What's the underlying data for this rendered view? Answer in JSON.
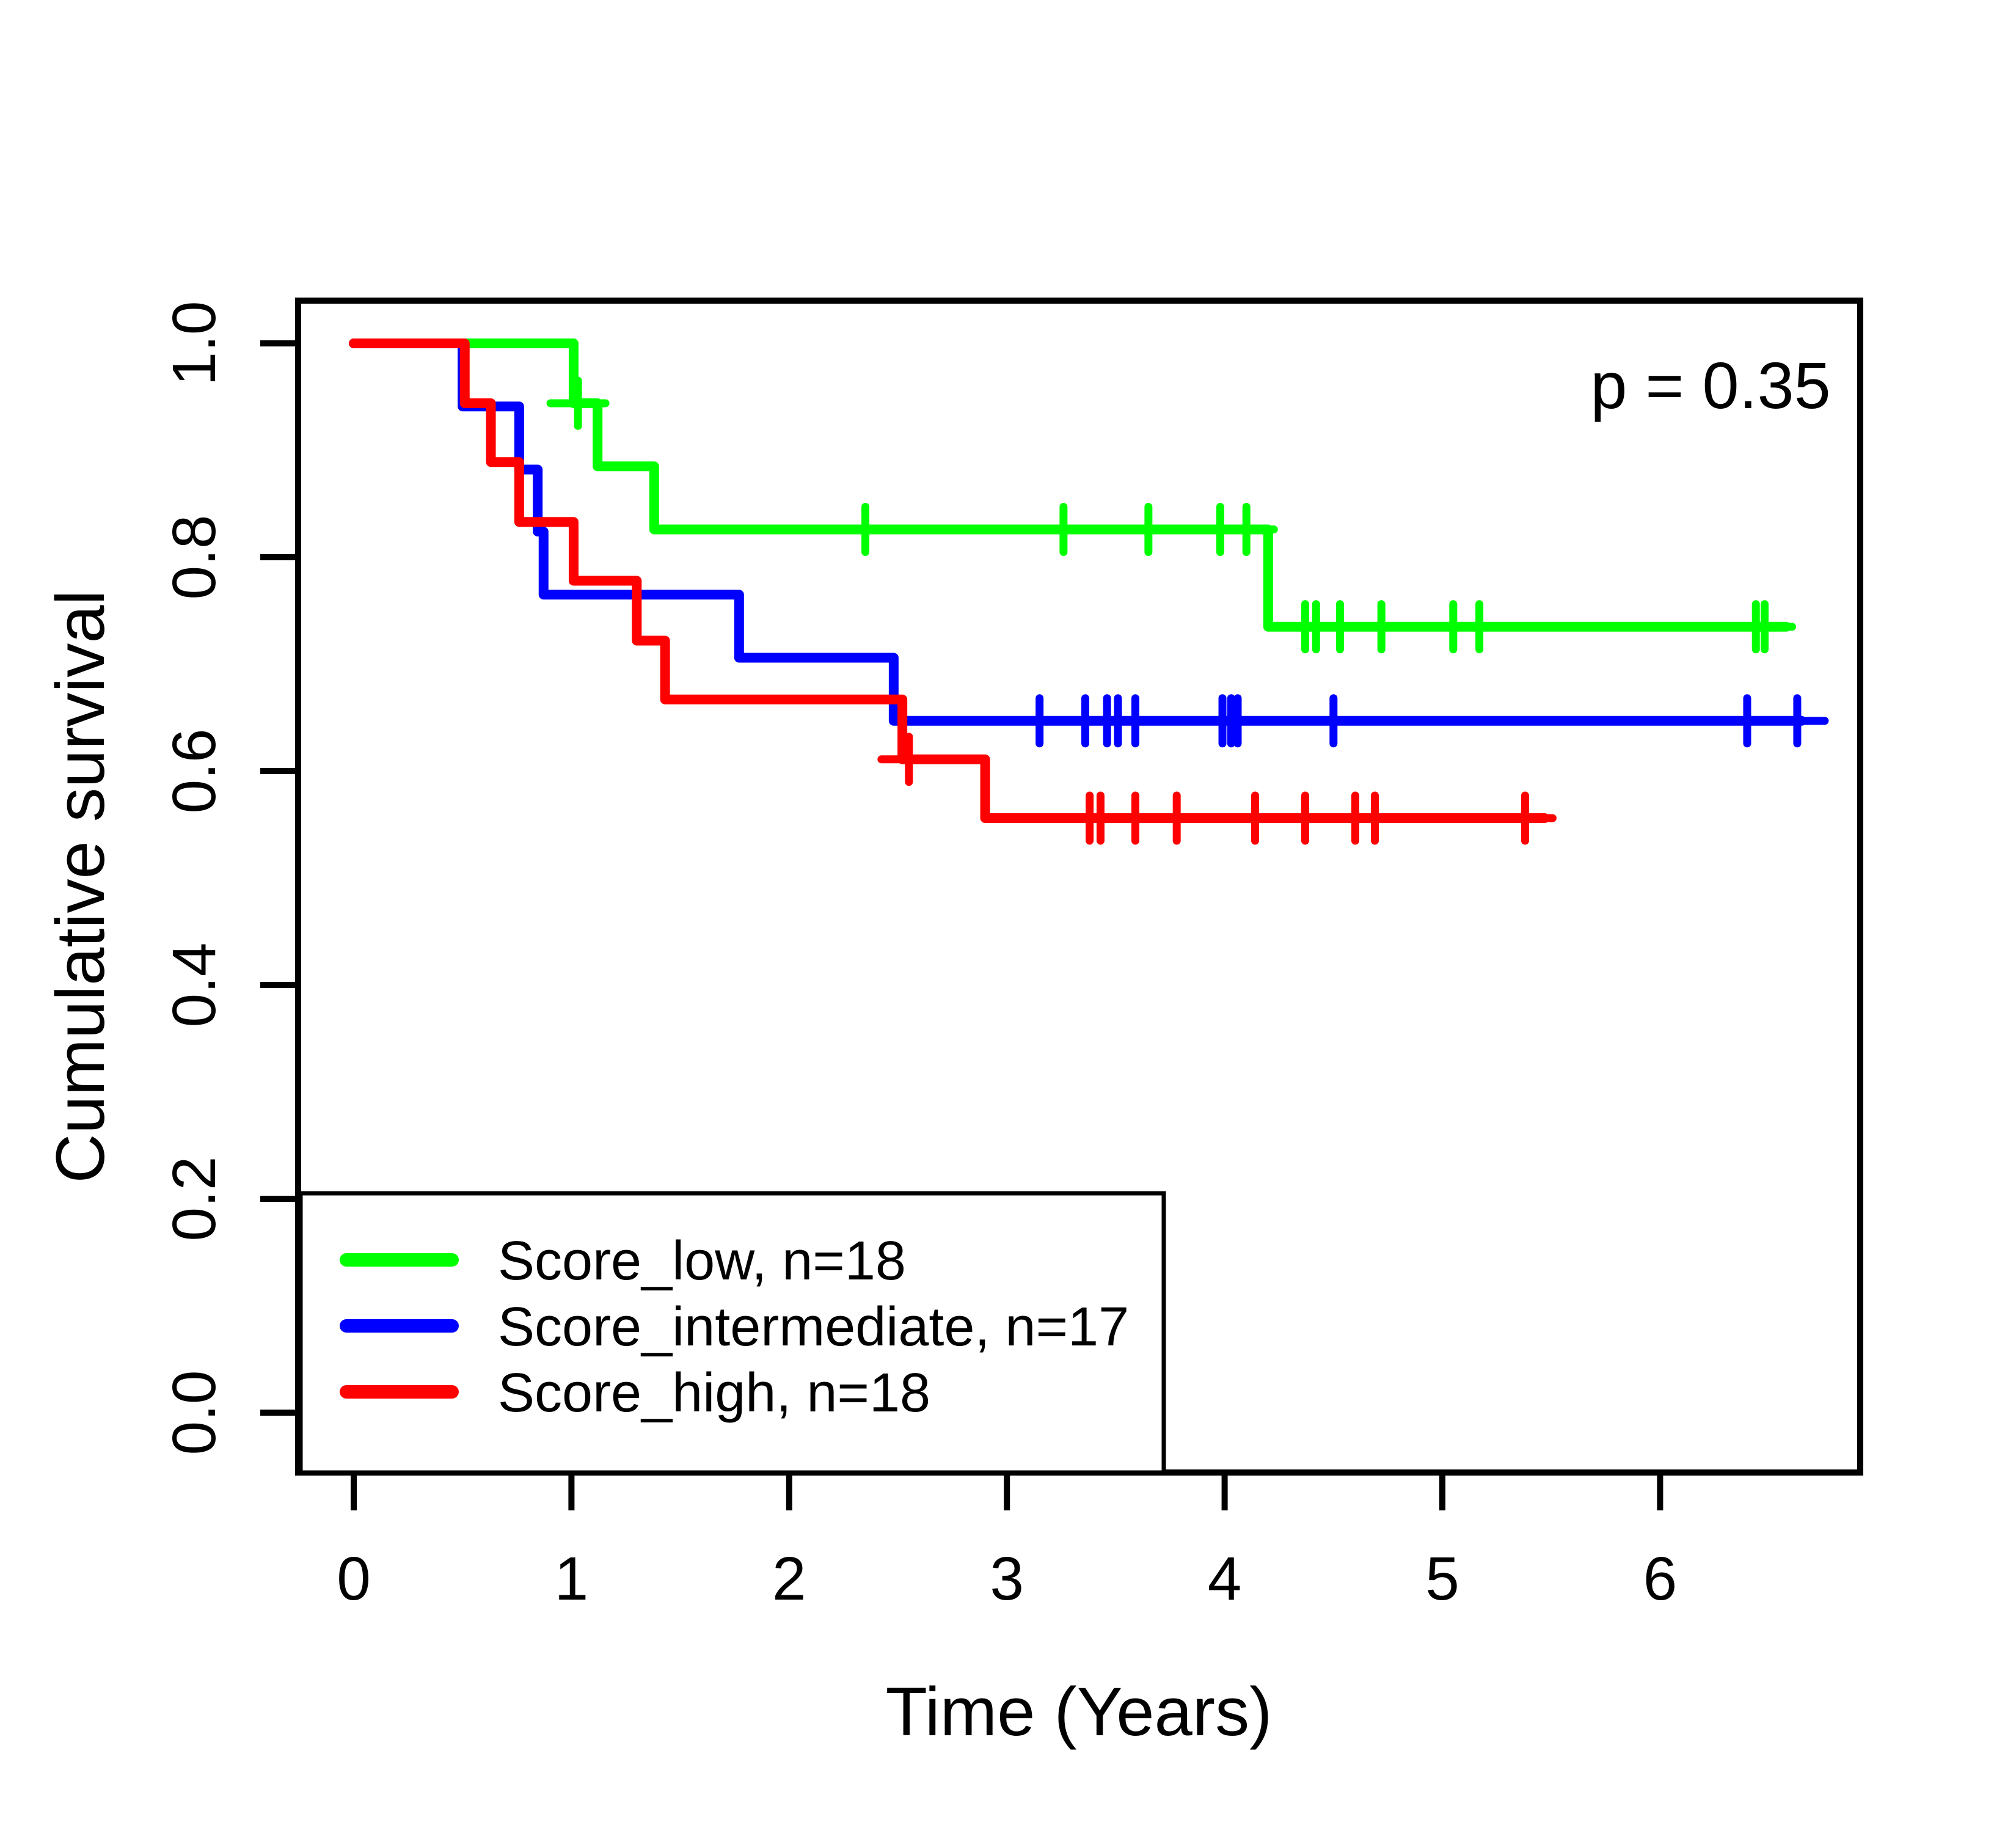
{
  "p_value_label": "p = 0.35",
  "axis": {
    "x_title": "Time (Years)",
    "y_title": "Cumulative survival",
    "x_tick_labels": [
      "0",
      "1",
      "2",
      "3",
      "4",
      "5",
      "6"
    ],
    "y_tick_labels": [
      "0.0",
      "0.2",
      "0.4",
      "0.6",
      "0.8",
      "1.0"
    ]
  },
  "legend": {
    "items": [
      {
        "label": "Score_low, n=18",
        "color": "#00FF00"
      },
      {
        "label": "Score_intermediate, n=17",
        "color": "#0000FF"
      },
      {
        "label": "Score_high, n=18",
        "color": "#FF0000"
      }
    ]
  },
  "colors": {
    "low": "#00FF00",
    "intermediate": "#0000FF",
    "high": "#FF0000",
    "text": "#000000",
    "background": "#FFFFFF"
  },
  "chart_data": {
    "type": "line",
    "subtype": "kaplan-meier-step",
    "title": "",
    "xlabel": "Time (Years)",
    "ylabel": "Cumulative survival",
    "annotation": "p = 0.35",
    "grid": false,
    "legend_position": "bottom-left",
    "xlim": [
      0,
      6.97
    ],
    "ylim": [
      0,
      1.04
    ],
    "x_ticks": [
      0,
      1,
      2,
      3,
      4,
      5,
      6
    ],
    "y_ticks": [
      0.0,
      0.2,
      0.4,
      0.6,
      0.8,
      1.0
    ],
    "series": [
      {
        "name": "Score_low",
        "n": 18,
        "color": "#00FF00",
        "steps": [
          [
            0,
            1.0
          ],
          [
            1.01,
            0.944
          ],
          [
            1.12,
            0.885
          ],
          [
            1.38,
            0.826
          ],
          [
            4.2,
            0.735
          ]
        ],
        "end_t": 6.58,
        "censors": [
          [
            1.03,
            0.944
          ],
          [
            2.35,
            0.826
          ],
          [
            3.26,
            0.826
          ],
          [
            3.65,
            0.826
          ],
          [
            3.98,
            0.826
          ],
          [
            4.1,
            0.826
          ],
          [
            4.37,
            0.735
          ],
          [
            4.42,
            0.735
          ],
          [
            4.53,
            0.735
          ],
          [
            4.72,
            0.735
          ],
          [
            5.05,
            0.735
          ],
          [
            5.17,
            0.735
          ],
          [
            6.44,
            0.735
          ],
          [
            6.48,
            0.735
          ]
        ]
      },
      {
        "name": "Score_intermediate",
        "n": 17,
        "color": "#0000FF",
        "steps": [
          [
            0,
            1.0
          ],
          [
            0.5,
            0.941
          ],
          [
            0.76,
            0.882
          ],
          [
            0.845,
            0.824
          ],
          [
            0.872,
            0.765
          ],
          [
            1.77,
            0.706
          ],
          [
            2.48,
            0.647
          ]
        ],
        "end_t": 6.65,
        "censors": [
          [
            3.15,
            0.647
          ],
          [
            3.36,
            0.647
          ],
          [
            3.46,
            0.647
          ],
          [
            3.51,
            0.647
          ],
          [
            3.59,
            0.647
          ],
          [
            3.99,
            0.647
          ],
          [
            4.03,
            0.647
          ],
          [
            4.06,
            0.647
          ],
          [
            4.5,
            0.647
          ],
          [
            6.4,
            0.647
          ],
          [
            6.63,
            0.647
          ]
        ]
      },
      {
        "name": "Score_high",
        "n": 18,
        "color": "#FF0000",
        "steps": [
          [
            0,
            1.0
          ],
          [
            0.51,
            0.944
          ],
          [
            0.63,
            0.889
          ],
          [
            0.76,
            0.833
          ],
          [
            1.01,
            0.778
          ],
          [
            1.3,
            0.722
          ],
          [
            1.43,
            0.667
          ],
          [
            2.52,
            0.611
          ],
          [
            2.9,
            0.556
          ]
        ],
        "end_t": 5.47,
        "censors": [
          [
            2.55,
            0.611
          ],
          [
            3.38,
            0.556
          ],
          [
            3.43,
            0.556
          ],
          [
            3.59,
            0.556
          ],
          [
            3.78,
            0.556
          ],
          [
            4.14,
            0.556
          ],
          [
            4.37,
            0.556
          ],
          [
            4.6,
            0.556
          ],
          [
            4.69,
            0.556
          ],
          [
            5.38,
            0.556
          ]
        ]
      }
    ]
  }
}
